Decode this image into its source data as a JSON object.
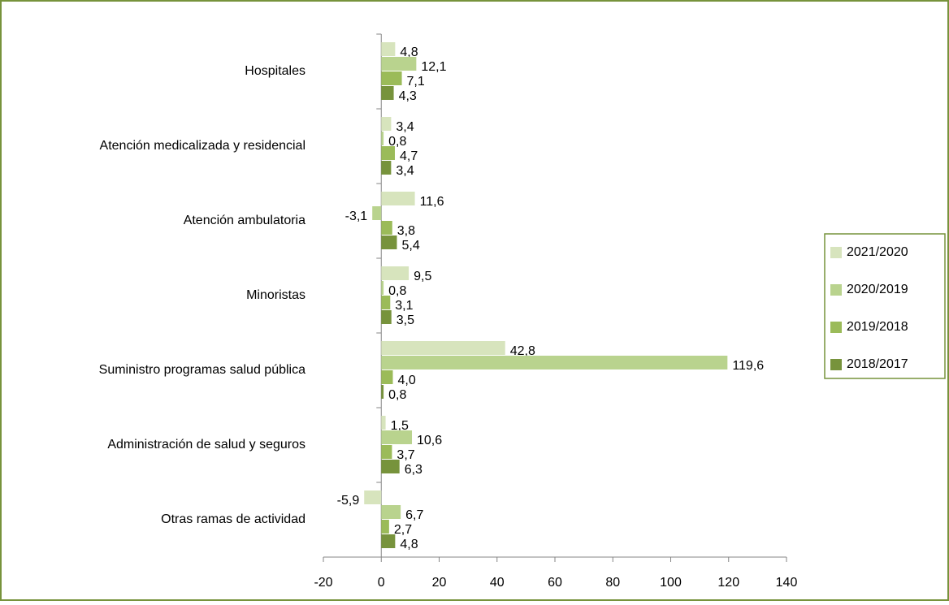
{
  "chart_data": {
    "type": "bar",
    "orientation": "horizontal",
    "categories": [
      "Hospitales",
      "Atención medicalizada y residencial",
      "Atención ambulatoria",
      "Minoristas",
      "Suministro programas salud pública",
      "Administración de salud y seguros",
      "Otras ramas de actividad"
    ],
    "series": [
      {
        "name": "2021/2020",
        "color": "#d7e4bd",
        "values": [
          4.8,
          3.4,
          11.6,
          9.5,
          42.8,
          1.5,
          -5.9
        ],
        "value_labels": [
          "4,8",
          "3,4",
          "11,6",
          "9,5",
          "42,8",
          "1,5",
          "-5,9"
        ]
      },
      {
        "name": "2020/2019",
        "color": "#b9d38e",
        "values": [
          12.1,
          0.8,
          -3.1,
          0.8,
          119.6,
          10.6,
          6.7
        ],
        "value_labels": [
          "12,1",
          "0,8",
          "-3,1",
          "0,8",
          "119,6",
          "10,6",
          "6,7"
        ]
      },
      {
        "name": "2019/2018",
        "color": "#9bbb59",
        "values": [
          7.1,
          4.7,
          3.8,
          3.1,
          4.0,
          3.7,
          2.7
        ],
        "value_labels": [
          "7,1",
          "4,7",
          "3,8",
          "3,1",
          "4,0",
          "3,7",
          "2,7"
        ]
      },
      {
        "name": "2018/2017",
        "color": "#77933c",
        "values": [
          4.3,
          3.4,
          5.4,
          3.5,
          0.8,
          6.3,
          4.8
        ],
        "value_labels": [
          "4,3",
          "3,4",
          "5,4",
          "3,5",
          "0,8",
          "6,3",
          "4,8"
        ]
      }
    ],
    "xlim": [
      -20,
      140
    ],
    "xticks": [
      -20,
      0,
      20,
      40,
      60,
      80,
      100,
      120,
      140
    ],
    "legend": "right"
  }
}
